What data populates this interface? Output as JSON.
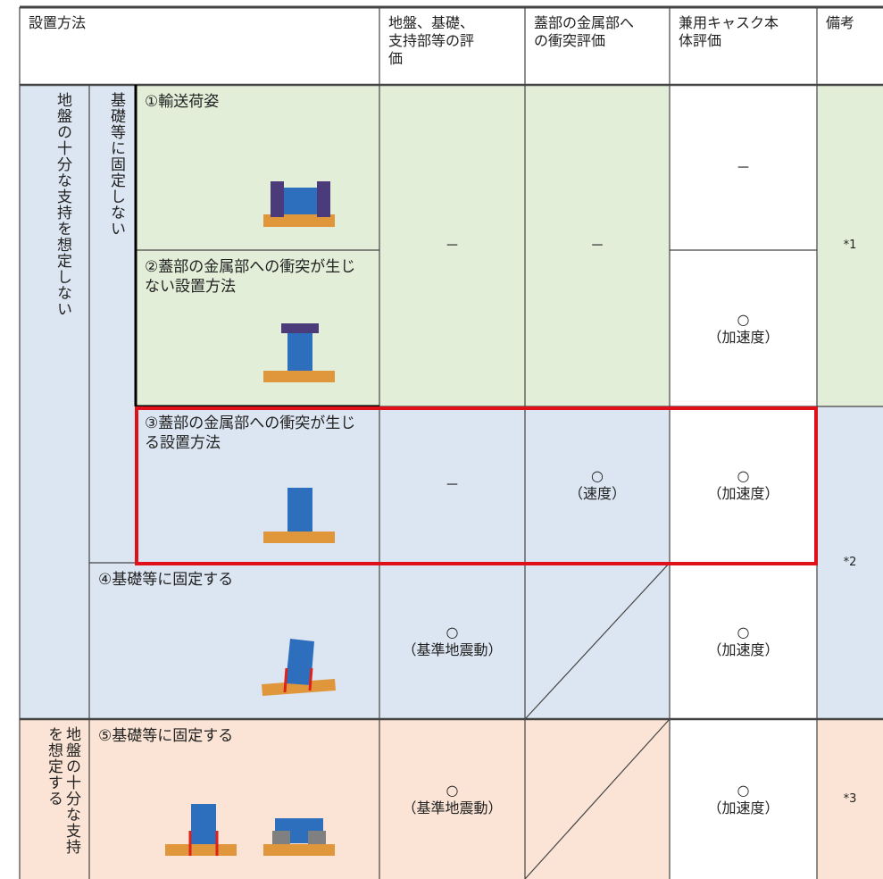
{
  "header": {
    "method": "設置方法",
    "ground": "地盤、基礎、支持部等の評価",
    "lid": "蓋部の金属部への衝突評価",
    "cask": "兼用キャスク本体評価",
    "remarks": "備考"
  },
  "groups": {
    "not_supported": "地盤の十分な支持を想定しない",
    "not_fixed": "基礎等に固定しない",
    "supported": "地盤の十分な支持を想定する"
  },
  "rows": [
    {
      "method": "①輸送荷姿",
      "cask": "－"
    },
    {
      "method": "②蓋部の金属部への衝突が生じない設置方法",
      "cask_mark": "○",
      "cask_note": "（加速度）"
    },
    {
      "method": "③蓋部の金属部への衝突が生じる設置方法",
      "ground": "－",
      "lid_mark": "○",
      "lid_note": "（速度）",
      "cask_mark": "○",
      "cask_note": "（加速度）"
    },
    {
      "method": "④基礎等に固定する",
      "ground_mark": "○",
      "ground_note": "（基準地震動）",
      "cask_mark": "○",
      "cask_note": "（加速度）"
    },
    {
      "method": "⑤基礎等に固定する",
      "ground_mark": "○",
      "ground_note": "（基準地震動）",
      "cask_mark": "○",
      "cask_note": "（加速度）",
      "remarks": "*3"
    }
  ],
  "shared": {
    "ground_1_2": "－",
    "lid_1_2": "－",
    "remarks_1_2": "*1",
    "remarks_3_4": "*2"
  }
}
